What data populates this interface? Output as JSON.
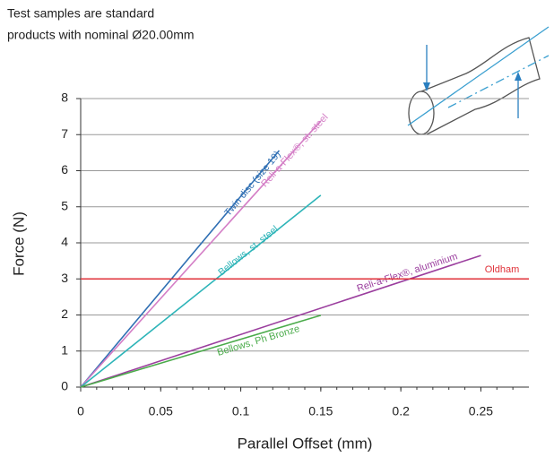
{
  "chart_data": {
    "type": "line",
    "annotation": [
      "Test samples are standard",
      "products with nominal Ø20.00mm"
    ],
    "xlabel": "Parallel Offset (mm)",
    "ylabel": "Force (N)",
    "xlim": [
      0,
      0.28
    ],
    "xticks": [
      0,
      0.05,
      0.1,
      0.15,
      0.2,
      0.25
    ],
    "ylim": [
      0,
      8
    ],
    "yticks": [
      0,
      1,
      2,
      3,
      4,
      5,
      6,
      7,
      8
    ],
    "grid": true,
    "series": [
      {
        "name": "Twin disc (size 19)",
        "color": "#2f6fb3",
        "x": [
          0,
          0.124
        ],
        "values": [
          0,
          6.56
        ]
      },
      {
        "name": "Reli-a-Flex®, st. steel",
        "color": "#d47ec6",
        "x": [
          0,
          0.15
        ],
        "values": [
          0,
          7.38
        ]
      },
      {
        "name": "Bellows, st. steel",
        "color": "#2db4b8",
        "x": [
          0,
          0.15
        ],
        "values": [
          0,
          5.32
        ]
      },
      {
        "name": "Reli-a-Flex®, aluminium",
        "color": "#9b3e9e",
        "x": [
          0,
          0.25
        ],
        "values": [
          0,
          3.65
        ]
      },
      {
        "name": "Bellows, Ph Bronze",
        "color": "#4aab4a",
        "x": [
          0,
          0.15
        ],
        "values": [
          0,
          1.99
        ]
      },
      {
        "name": "Oldham",
        "color": "#e0323a",
        "x": [
          0,
          0.28
        ],
        "values": [
          3,
          3
        ]
      }
    ]
  }
}
